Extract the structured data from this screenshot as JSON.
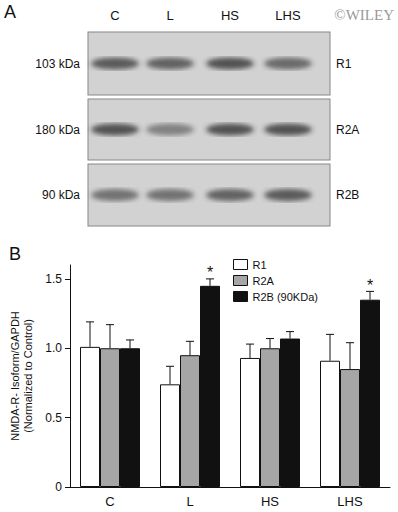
{
  "blot": {
    "panel_label": "A",
    "watermark": "©WILEY",
    "lanes": [
      "C",
      "L",
      "HS",
      "LHS"
    ],
    "rows": [
      {
        "size": "103 kDa",
        "name": "R1"
      },
      {
        "size": "180 kDa",
        "name": "R2A"
      },
      {
        "size": "90 kDa",
        "name": "R2B"
      }
    ]
  },
  "chart_data": {
    "type": "bar",
    "panel_label": "B",
    "ylabel": "NMDA-R- Isoform/GAPDH\n(Normalized to Control)",
    "categories": [
      "C",
      "L",
      "HS",
      "LHS"
    ],
    "series": [
      {
        "name": "R1",
        "color": "#ffffff",
        "values": [
          1.01,
          0.74,
          0.93,
          0.91
        ],
        "errors": [
          0.18,
          0.13,
          0.1,
          0.19
        ]
      },
      {
        "name": "R2A",
        "color": "#a6a6a6",
        "values": [
          1.0,
          0.95,
          1.0,
          0.85
        ],
        "errors": [
          0.17,
          0.1,
          0.07,
          0.19
        ]
      },
      {
        "name": "R2B (90KDa)",
        "color": "#111111",
        "values": [
          1.0,
          1.45,
          1.07,
          1.35
        ],
        "errors": [
          0.06,
          0.05,
          0.05,
          0.06
        ]
      }
    ],
    "annotations": [
      {
        "category": "L",
        "series": "R2B (90KDa)",
        "text": "*"
      },
      {
        "category": "LHS",
        "series": "R2B (90KDa)",
        "text": "*"
      }
    ],
    "ylim": [
      0,
      1.6
    ],
    "yticks": [
      0,
      0.5,
      {
        "value": 1,
        "label": "1.0"
      },
      1.5
    ],
    "legend": "upper right",
    "grid": false
  }
}
